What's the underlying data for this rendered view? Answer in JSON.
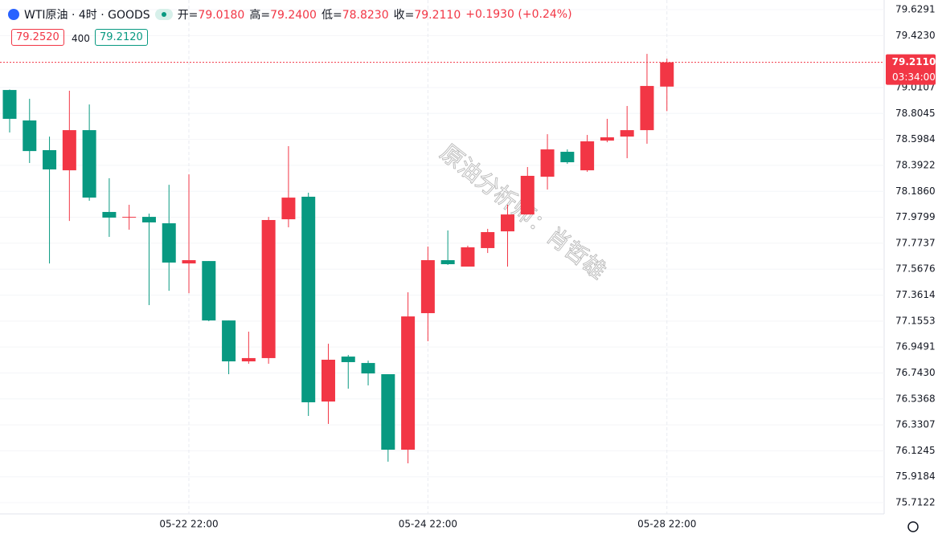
{
  "chart_data": {
    "type": "candlestick",
    "header": {
      "title": "WTI原油 · 4时 · GOODS",
      "open_label": "开=",
      "open": "79.0180",
      "high_label": "高=",
      "high": "79.2400",
      "low_label": "低=",
      "low": "78.8230",
      "close_label": "收=",
      "close": "79.2110",
      "change": "+0.1930 (+0.24%)"
    },
    "bid": "79.2520",
    "spread": "400",
    "ask": "79.2120",
    "last_price": {
      "value": 79.211,
      "label": "79.2110",
      "countdown": "03:34:00"
    },
    "watermark": "原油分析师：肖哲雄",
    "categories": [
      null,
      null,
      null,
      null,
      null,
      null,
      null,
      null,
      null,
      "05-22 22:00",
      null,
      null,
      null,
      null,
      null,
      null,
      null,
      null,
      null,
      null,
      null,
      "05-24 22:00",
      null,
      null,
      null,
      null,
      null,
      null,
      null,
      null,
      null,
      null,
      null,
      "05-28 22:00"
    ],
    "open": [
      78.991,
      78.749,
      78.513,
      78.353,
      78.672,
      78.022,
      77.977,
      77.983,
      77.932,
      77.613,
      77.632,
      77.16,
      76.835,
      76.861,
      77.964,
      78.143,
      76.516,
      76.873,
      76.822,
      76.733,
      76.133,
      77.218,
      77.639,
      77.588,
      77.735,
      77.868,
      78.002,
      78.302,
      78.5,
      78.353,
      78.589,
      78.621,
      78.672,
      79.018
    ],
    "high": [
      78.995,
      78.921,
      78.621,
      78.985,
      78.876,
      78.29,
      78.079,
      78.009,
      78.238,
      78.321,
      77.632,
      77.16,
      77.071,
      77.983,
      78.545,
      78.175,
      76.975,
      76.886,
      76.841,
      76.733,
      77.384,
      77.747,
      77.875,
      77.754,
      77.888,
      78.079,
      78.379,
      78.64,
      78.519,
      78.634,
      78.762,
      78.864,
      79.278,
      79.24
    ],
    "low": [
      78.653,
      78.411,
      77.613,
      77.951,
      78.111,
      77.824,
      77.881,
      77.282,
      77.396,
      77.377,
      77.154,
      76.733,
      76.816,
      76.816,
      77.9,
      76.401,
      76.338,
      76.618,
      76.644,
      76.038,
      76.025,
      76.995,
      77.601,
      77.588,
      77.696,
      77.588,
      78.002,
      78.2,
      78.404,
      78.341,
      78.576,
      78.449,
      78.564,
      78.823
    ],
    "close": [
      78.762,
      78.506,
      78.36,
      78.672,
      78.136,
      77.977,
      77.983,
      77.939,
      77.62,
      77.639,
      77.16,
      76.835,
      76.861,
      77.958,
      78.136,
      76.51,
      76.848,
      76.829,
      76.739,
      76.133,
      77.192,
      77.639,
      77.607,
      77.741,
      77.862,
      78.002,
      78.309,
      78.519,
      78.417,
      78.583,
      78.615,
      78.672,
      79.023,
      79.211
    ],
    "up_color": "#f23645",
    "down_color": "#089981",
    "ylim": [
      75.623,
      79.706
    ],
    "yticks": [
      {
        "value": 79.6291,
        "label": "79.6291"
      },
      {
        "value": 79.423,
        "label": "79.4230"
      },
      {
        "value": 79.0107,
        "label": "79.0107"
      },
      {
        "value": 78.8045,
        "label": "78.8045"
      },
      {
        "value": 78.5984,
        "label": "78.5984"
      },
      {
        "value": 78.3922,
        "label": "78.3922"
      },
      {
        "value": 78.186,
        "label": "78.1860"
      },
      {
        "value": 77.9799,
        "label": "77.9799"
      },
      {
        "value": 77.7737,
        "label": "77.7737"
      },
      {
        "value": 77.5676,
        "label": "77.5676"
      },
      {
        "value": 77.3614,
        "label": "77.3614"
      },
      {
        "value": 77.1553,
        "label": "77.1553"
      },
      {
        "value": 76.9491,
        "label": "76.9491"
      },
      {
        "value": 76.743,
        "label": "76.7430"
      },
      {
        "value": 76.5368,
        "label": "76.5368"
      },
      {
        "value": 76.3307,
        "label": "76.3307"
      },
      {
        "value": 76.1245,
        "label": "76.1245"
      },
      {
        "value": 75.9184,
        "label": "75.9184"
      },
      {
        "value": 75.7122,
        "label": "75.7122"
      }
    ],
    "grid": true
  }
}
